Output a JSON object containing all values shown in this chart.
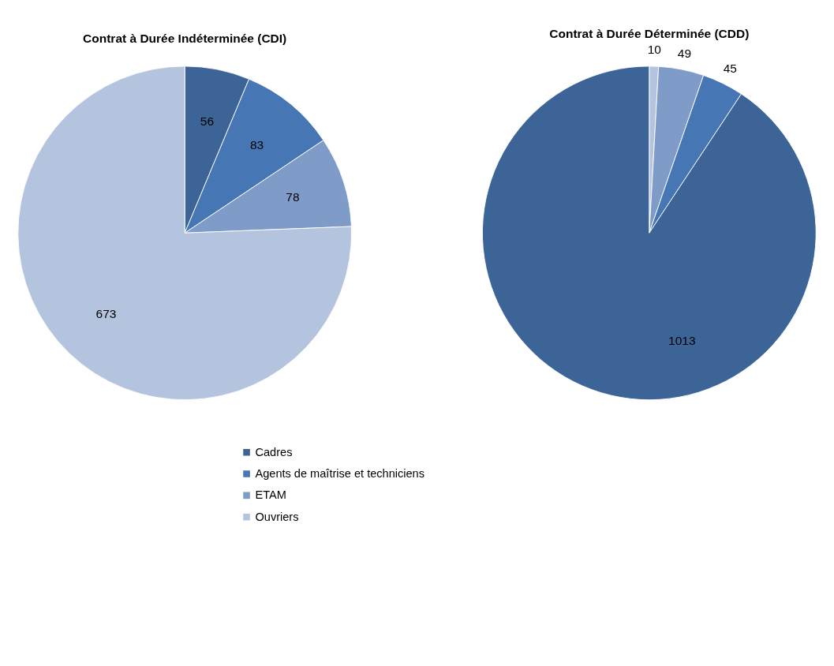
{
  "chart_data": [
    {
      "type": "pie",
      "title": "Contrat à Durée Indéterminée (CDI)",
      "categories": [
        "Cadres",
        "Agents de maîtrise et techniciens",
        "ETAM",
        "Ouvriers"
      ],
      "values": [
        56,
        83,
        78,
        673
      ],
      "colors": [
        "#3c6496",
        "#4677b4",
        "#7f9cc8",
        "#b4c3de"
      ],
      "data_labels": true,
      "legend": "bottom"
    },
    {
      "type": "pie",
      "title": "Contrat à Durée Déterminée (CDD)",
      "categories": [
        null,
        null,
        null,
        null
      ],
      "values": [
        10,
        49,
        45,
        1013
      ],
      "colors": [
        "#b4c3de",
        "#7f9cc8",
        "#4677b4",
        "#3c6496"
      ],
      "data_labels": true,
      "legend": false
    }
  ]
}
